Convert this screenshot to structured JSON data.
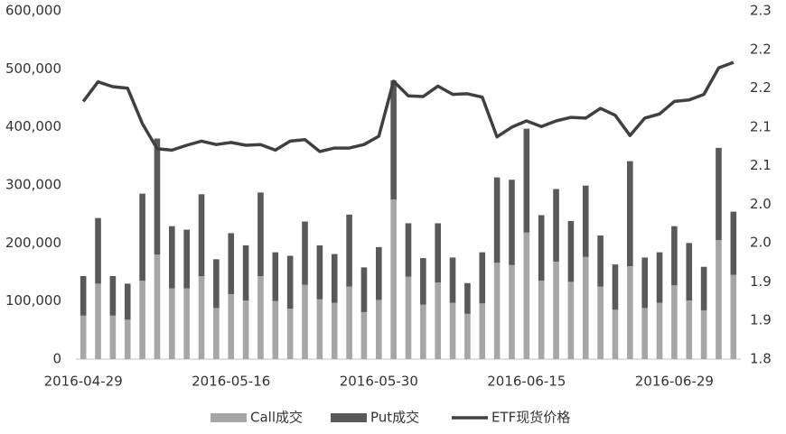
{
  "chart_data": {
    "type": "bar-line",
    "categories": [
      "2016-04-29",
      null,
      null,
      null,
      null,
      null,
      null,
      null,
      null,
      null,
      "2016-05-16",
      null,
      null,
      null,
      null,
      null,
      null,
      null,
      null,
      null,
      "2016-05-30",
      null,
      null,
      null,
      null,
      null,
      null,
      null,
      null,
      null,
      "2016-06-15",
      null,
      null,
      null,
      null,
      null,
      null,
      null,
      null,
      null,
      "2016-06-29",
      null,
      null,
      null,
      null
    ],
    "series": [
      {
        "name": "Call成交",
        "type": "bar",
        "color": "#a6a6a6",
        "values": [
          75000,
          130000,
          75000,
          68000,
          135000,
          180000,
          122000,
          122000,
          143000,
          88000,
          112000,
          101000,
          143000,
          100000,
          87000,
          128000,
          103000,
          97000,
          125000,
          81000,
          102000,
          275000,
          142000,
          94000,
          132000,
          97000,
          78000,
          96000,
          166000,
          162000,
          218000,
          135000,
          168000,
          133000,
          176000,
          125000,
          85000,
          160000,
          88000,
          97000,
          127000,
          101000,
          84000,
          205000,
          145000
        ]
      },
      {
        "name": "Put成交",
        "type": "bar",
        "color": "#595959",
        "values": [
          68000,
          113000,
          68000,
          62000,
          150000,
          200000,
          107000,
          101000,
          141000,
          84000,
          105000,
          95000,
          144000,
          84000,
          91000,
          109000,
          93000,
          84000,
          124000,
          77000,
          91000,
          205000,
          92000,
          80000,
          102000,
          78000,
          53000,
          88000,
          147000,
          147000,
          179000,
          113000,
          125000,
          105000,
          123000,
          88000,
          78000,
          181000,
          87000,
          87000,
          102000,
          99000,
          75000,
          159000,
          109000
        ]
      },
      {
        "name": "ETF现货价格",
        "type": "line",
        "axis": "y2",
        "color": "#404040",
        "values": [
          2.17,
          2.198,
          2.191,
          2.189,
          2.138,
          2.102,
          2.1,
          2.107,
          2.113,
          2.108,
          2.111,
          2.107,
          2.108,
          2.1,
          2.113,
          2.115,
          2.098,
          2.103,
          2.103,
          2.108,
          2.12,
          2.199,
          2.178,
          2.177,
          2.192,
          2.18,
          2.181,
          2.176,
          2.119,
          2.133,
          2.142,
          2.134,
          2.142,
          2.147,
          2.146,
          2.16,
          2.15,
          2.121,
          2.146,
          2.152,
          2.17,
          2.172,
          2.18,
          2.218,
          2.226
        ]
      }
    ],
    "ylim": [
      0,
      600000
    ],
    "yticks": [
      0,
      {
        "value": 100000,
        "label": "100,000"
      },
      {
        "value": 200000,
        "label": "200,000"
      },
      {
        "value": 300000,
        "label": "300,000"
      },
      {
        "value": 400000,
        "label": "400,000"
      },
      {
        "value": 500000,
        "label": "500,000"
      },
      {
        "value": 600000,
        "label": "600,000"
      }
    ],
    "y2lim": [
      1.8,
      2.3
    ],
    "y2ticks": [
      1.8,
      {
        "value": 1.856,
        "label": "1.9"
      },
      {
        "value": 1.911,
        "label": "1.9"
      },
      {
        "value": 1.967,
        "label": "2.0"
      },
      {
        "value": 2.022,
        "label": "2.0"
      },
      {
        "value": 2.078,
        "label": "2.1"
      },
      {
        "value": 2.133,
        "label": "2.1"
      },
      {
        "value": 2.189,
        "label": "2.2"
      },
      {
        "value": 2.244,
        "label": "2.2"
      },
      2.3
    ],
    "grid": false,
    "legend": "bottom"
  }
}
